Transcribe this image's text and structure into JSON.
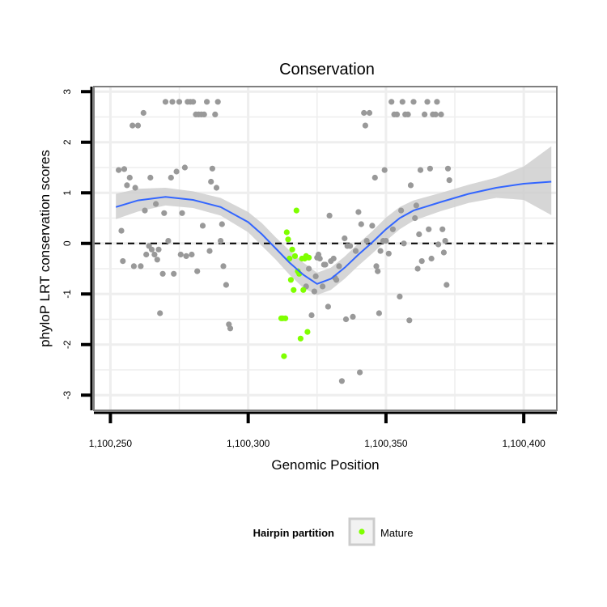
{
  "chart_data": {
    "type": "scatter",
    "title": "Conservation",
    "xlabel": "Genomic Position",
    "ylabel": "phyloP LRT conservation scores",
    "xlim": [
      1100244,
      1100412
    ],
    "ylim": [
      -3.3,
      3.1
    ],
    "x_ticks": [
      1100250,
      1100300,
      1100350,
      1100400
    ],
    "x_tick_labels": [
      "1,100,250",
      "1,100,300",
      "1,100,350",
      "1,100,400"
    ],
    "y_ticks": [
      -3,
      -2,
      -1,
      0,
      1,
      2,
      3
    ],
    "y_tick_labels": [
      "-3",
      "-2",
      "-1",
      "0",
      "1",
      "2",
      "3"
    ],
    "reference_line": {
      "y": 0,
      "style": "dashed"
    },
    "legend": {
      "title": "Hairpin partition",
      "entries": [
        {
          "label": "Mature",
          "color": "#7fff00"
        }
      ]
    },
    "colors": {
      "other": "#999999",
      "mature": "#7fff00",
      "smooth": "#3366ff",
      "band": "#cccccc",
      "grid": "#eeeeee",
      "panel_border": "#7f7f7f"
    },
    "series": [
      {
        "name": "Other",
        "points": [
          [
            1100253,
            1.45
          ],
          [
            1100254,
            0.25
          ],
          [
            1100254.5,
            -0.35
          ],
          [
            1100255,
            1.47
          ],
          [
            1100256,
            1.15
          ],
          [
            1100257,
            1.3
          ],
          [
            1100258,
            2.33
          ],
          [
            1100258.5,
            -0.45
          ],
          [
            1100259,
            1.1
          ],
          [
            1100260,
            2.33
          ],
          [
            1100261,
            -0.45
          ],
          [
            1100262,
            2.58
          ],
          [
            1100262.5,
            0.65
          ],
          [
            1100263,
            -0.22
          ],
          [
            1100264,
            -0.05
          ],
          [
            1100264.5,
            1.3
          ],
          [
            1100265,
            -0.12
          ],
          [
            1100266,
            -0.22
          ],
          [
            1100266.5,
            0.78
          ],
          [
            1100267,
            -0.32
          ],
          [
            1100267.5,
            -0.12
          ],
          [
            1100268,
            -1.38
          ],
          [
            1100269,
            -0.6
          ],
          [
            1100269.5,
            0.6
          ],
          [
            1100270,
            2.8
          ],
          [
            1100271,
            0.05
          ],
          [
            1100272,
            1.3
          ],
          [
            1100272.5,
            2.8
          ],
          [
            1100273,
            -0.6
          ],
          [
            1100274,
            1.42
          ],
          [
            1100275,
            2.8
          ],
          [
            1100275.5,
            -0.22
          ],
          [
            1100276,
            0.6
          ],
          [
            1100277,
            1.5
          ],
          [
            1100277.5,
            -0.25
          ],
          [
            1100278,
            2.8
          ],
          [
            1100279,
            2.8
          ],
          [
            1100279.5,
            -0.22
          ],
          [
            1100280,
            2.8
          ],
          [
            1100281,
            2.55
          ],
          [
            1100281.5,
            -0.55
          ],
          [
            1100282,
            2.55
          ],
          [
            1100283,
            2.55
          ],
          [
            1100283.5,
            0.35
          ],
          [
            1100284,
            2.55
          ],
          [
            1100285,
            2.8
          ],
          [
            1100286,
            -0.15
          ],
          [
            1100286.5,
            1.22
          ],
          [
            1100287,
            1.48
          ],
          [
            1100288,
            2.55
          ],
          [
            1100288.5,
            1.1
          ],
          [
            1100289,
            2.8
          ],
          [
            1100290,
            0.05
          ],
          [
            1100290.5,
            0.38
          ],
          [
            1100291,
            -0.45
          ],
          [
            1100292,
            -0.82
          ],
          [
            1100293,
            -1.6
          ],
          [
            1100293.5,
            -1.68
          ],
          [
            1100321,
            -0.85
          ],
          [
            1100322,
            -0.5
          ],
          [
            1100323,
            -1.42
          ],
          [
            1100324,
            -0.95
          ],
          [
            1100324.5,
            -0.65
          ],
          [
            1100325,
            -0.28
          ],
          [
            1100325.5,
            -0.22
          ],
          [
            1100326,
            -0.3
          ],
          [
            1100327,
            -0.85
          ],
          [
            1100327.5,
            -0.42
          ],
          [
            1100328,
            -0.42
          ],
          [
            1100329,
            -1.25
          ],
          [
            1100329.5,
            0.55
          ],
          [
            1100330,
            -0.35
          ],
          [
            1100331,
            -0.3
          ],
          [
            1100331.5,
            -0.68
          ],
          [
            1100332,
            -0.72
          ],
          [
            1100333,
            -0.45
          ],
          [
            1100334,
            -2.72
          ],
          [
            1100335,
            0.1
          ],
          [
            1100335.5,
            -1.5
          ],
          [
            1100336,
            -0.05
          ],
          [
            1100337,
            -0.05
          ],
          [
            1100338,
            -1.45
          ],
          [
            1100339,
            -0.15
          ],
          [
            1100340,
            0.62
          ],
          [
            1100340.5,
            -2.55
          ],
          [
            1100341,
            0.38
          ],
          [
            1100342,
            2.58
          ],
          [
            1100342.5,
            2.33
          ],
          [
            1100343,
            0.05
          ],
          [
            1100344,
            2.58
          ],
          [
            1100345,
            0.35
          ],
          [
            1100346,
            1.3
          ],
          [
            1100346.5,
            -0.45
          ],
          [
            1100347,
            -0.55
          ],
          [
            1100347.5,
            -1.38
          ],
          [
            1100348,
            -0.15
          ],
          [
            1100349,
            0.05
          ],
          [
            1100349.5,
            1.45
          ],
          [
            1100350,
            0.05
          ],
          [
            1100351,
            -0.2
          ],
          [
            1100352,
            2.8
          ],
          [
            1100352.5,
            0.28
          ],
          [
            1100353,
            2.55
          ],
          [
            1100354,
            2.55
          ],
          [
            1100355,
            -1.05
          ],
          [
            1100355.5,
            0.65
          ],
          [
            1100356,
            2.8
          ],
          [
            1100356.5,
            0.0
          ],
          [
            1100357,
            2.55
          ],
          [
            1100358,
            2.55
          ],
          [
            1100358.5,
            -1.52
          ],
          [
            1100359,
            1.15
          ],
          [
            1100360,
            2.8
          ],
          [
            1100360.5,
            0.5
          ],
          [
            1100361,
            0.75
          ],
          [
            1100361.5,
            -0.5
          ],
          [
            1100362,
            0.18
          ],
          [
            1100362.5,
            1.45
          ],
          [
            1100363,
            -0.35
          ],
          [
            1100364,
            2.55
          ],
          [
            1100365,
            2.8
          ],
          [
            1100365.5,
            0.28
          ],
          [
            1100366,
            1.48
          ],
          [
            1100366.5,
            -0.3
          ],
          [
            1100367,
            2.55
          ],
          [
            1100368,
            2.55
          ],
          [
            1100368.5,
            2.8
          ],
          [
            1100369,
            -0.02
          ],
          [
            1100370,
            2.55
          ],
          [
            1100370.5,
            0.28
          ],
          [
            1100371,
            -0.18
          ],
          [
            1100371.5,
            0.05
          ],
          [
            1100372,
            -0.82
          ],
          [
            1100372.5,
            1.48
          ],
          [
            1100373,
            1.25
          ]
        ]
      },
      {
        "name": "Mature",
        "points": [
          [
            1100312,
            -1.48
          ],
          [
            1100312.5,
            -1.48
          ],
          [
            1100313,
            -2.23
          ],
          [
            1100313.5,
            -1.48
          ],
          [
            1100314,
            0.22
          ],
          [
            1100314.5,
            0.08
          ],
          [
            1100315,
            -0.3
          ],
          [
            1100315.5,
            -0.72
          ],
          [
            1100316,
            -0.12
          ],
          [
            1100316.5,
            -0.92
          ],
          [
            1100317,
            -0.25
          ],
          [
            1100317.5,
            0.65
          ],
          [
            1100318,
            -0.55
          ],
          [
            1100318.5,
            -0.6
          ],
          [
            1100319,
            -1.88
          ],
          [
            1100319.5,
            -0.3
          ],
          [
            1100320,
            -0.92
          ],
          [
            1100320.5,
            -0.3
          ],
          [
            1100321,
            -0.25
          ],
          [
            1100321.5,
            -1.75
          ],
          [
            1100322,
            -0.28
          ]
        ]
      }
    ],
    "smooth_line": {
      "x": [
        1100252,
        1100260,
        1100270,
        1100280,
        1100290,
        1100300,
        1100305,
        1100310,
        1100315,
        1100320,
        1100325,
        1100330,
        1100335,
        1100340,
        1100345,
        1100350,
        1100355,
        1100360,
        1100370,
        1100380,
        1100390,
        1100400,
        1100410
      ],
      "y": [
        0.72,
        0.85,
        0.92,
        0.86,
        0.72,
        0.42,
        0.18,
        -0.1,
        -0.38,
        -0.62,
        -0.8,
        -0.7,
        -0.48,
        -0.22,
        0.02,
        0.28,
        0.5,
        0.65,
        0.82,
        0.98,
        1.1,
        1.18,
        1.22
      ],
      "lower": [
        0.48,
        0.63,
        0.75,
        0.7,
        0.55,
        0.22,
        -0.05,
        -0.32,
        -0.62,
        -0.88,
        -1.02,
        -0.92,
        -0.7,
        -0.44,
        -0.2,
        0.05,
        0.28,
        0.45,
        0.64,
        0.8,
        0.9,
        0.86,
        0.56
      ],
      "upper": [
        0.98,
        1.08,
        1.1,
        1.03,
        0.9,
        0.62,
        0.4,
        0.12,
        -0.14,
        -0.38,
        -0.58,
        -0.48,
        -0.26,
        0.0,
        0.24,
        0.51,
        0.72,
        0.85,
        1.0,
        1.16,
        1.3,
        1.52,
        1.92
      ]
    }
  }
}
